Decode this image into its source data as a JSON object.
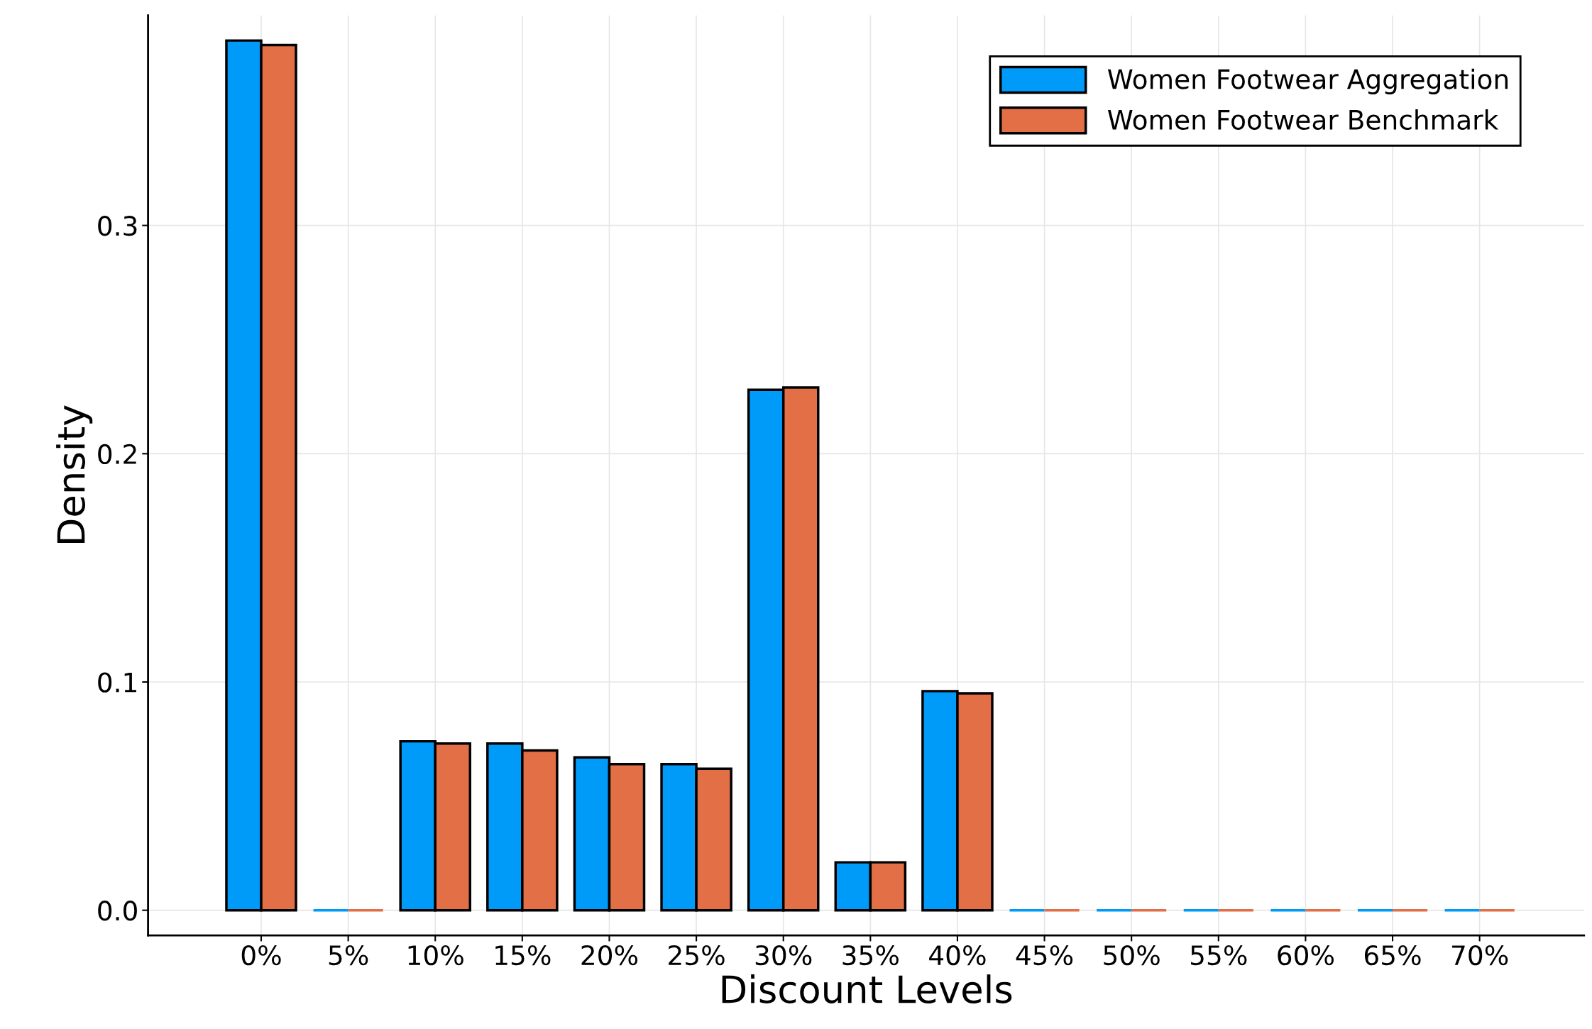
{
  "chart_data": {
    "type": "bar",
    "xlabel": "Discount Levels",
    "ylabel": "Density",
    "categories": [
      "0%",
      "5%",
      "10%",
      "15%",
      "20%",
      "25%",
      "30%",
      "35%",
      "40%",
      "45%",
      "50%",
      "55%",
      "60%",
      "65%",
      "70%"
    ],
    "series": [
      {
        "name": "Women Footwear Aggregation",
        "color": "#009af9",
        "values": [
          0.381,
          0,
          0.074,
          0.073,
          0.067,
          0.064,
          0.228,
          0.021,
          0.096,
          0,
          0,
          0,
          0,
          0,
          0
        ]
      },
      {
        "name": "Women Footwear Benchmark",
        "color": "#e26f46",
        "values": [
          0.379,
          0,
          0.073,
          0.07,
          0.064,
          0.062,
          0.229,
          0.021,
          0.095,
          0,
          0,
          0,
          0,
          0,
          0
        ]
      }
    ],
    "ylim": [
      -0.011,
      0.392
    ],
    "yticks": [
      {
        "value": 0,
        "label": "0.0"
      },
      0.1,
      0.2,
      0.3
    ],
    "grid": true,
    "legend": "top right"
  }
}
